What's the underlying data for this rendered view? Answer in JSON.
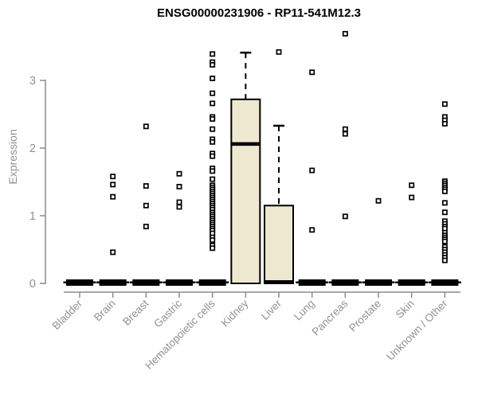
{
  "title": "ENSG00000231906 - RP11-541M12.3",
  "chart_data": {
    "type": "boxplot",
    "title": "ENSG00000231906 - RP11-541M12.3",
    "xlabel": "",
    "ylabel": "Expression",
    "ylim": [
      0,
      3.8
    ],
    "yticks": [
      "0",
      "1",
      "2",
      "3"
    ],
    "grid": false,
    "legend": "none",
    "colors": {
      "box_fill": "#EDE8CF",
      "box_stroke": "#000000",
      "median": "#000000",
      "whisker": "#000000",
      "outlier_stroke": "#000000",
      "outlier_fill": "#ffffff",
      "axis": "#8C8C8C",
      "tick_label": "#919191",
      "title": "#000000"
    },
    "categories": [
      "Bladder",
      "Brain",
      "Breast",
      "Gastric",
      "Hematopoietic cells",
      "Kidney",
      "Liver",
      "Lung",
      "Pancreas",
      "Prostate",
      "Skin",
      "Unknown / Other"
    ],
    "boxes": [
      {
        "category": "Bladder",
        "q1": 0,
        "median": 0,
        "q3": 0.02,
        "whisker_low": 0,
        "whisker_high": 0.02,
        "outliers": []
      },
      {
        "category": "Brain",
        "q1": 0,
        "median": 0,
        "q3": 0.02,
        "whisker_low": 0,
        "whisker_high": 0.02,
        "outliers": [
          1.58,
          1.46,
          1.28,
          0.46
        ]
      },
      {
        "category": "Breast",
        "q1": 0,
        "median": 0,
        "q3": 0.02,
        "whisker_low": 0,
        "whisker_high": 0.02,
        "outliers": [
          2.32,
          1.44,
          1.15,
          0.84
        ]
      },
      {
        "category": "Gastric",
        "q1": 0,
        "median": 0,
        "q3": 0.02,
        "whisker_low": 0,
        "whisker_high": 0.02,
        "outliers": [
          1.62,
          1.43,
          1.2,
          1.13
        ]
      },
      {
        "category": "Hematopoietic cells",
        "q1": 0,
        "median": 0,
        "q3": 0.02,
        "whisker_low": 0,
        "whisker_high": 0.02,
        "outliers": [
          3.39,
          3.27,
          3.23,
          3.03,
          2.81,
          2.66,
          2.46,
          2.43,
          2.28,
          2.13,
          2.09,
          1.92,
          1.88,
          1.7,
          1.66,
          1.54,
          1.45,
          1.42,
          1.39,
          1.36,
          1.33,
          1.3,
          1.27,
          1.24,
          1.21,
          1.18,
          1.15,
          1.12,
          1.09,
          1.05,
          1.02,
          0.99,
          0.96,
          0.93,
          0.9,
          0.87,
          0.84,
          0.81,
          0.78,
          0.74,
          0.68,
          0.64,
          0.56,
          0.52
        ]
      },
      {
        "category": "Kidney",
        "q1": 0,
        "median": 2.06,
        "q3": 2.72,
        "whisker_low": 0,
        "whisker_high": 3.41,
        "outliers": []
      },
      {
        "category": "Liver",
        "q1": 0,
        "median": 0.02,
        "q3": 1.15,
        "whisker_low": 0,
        "whisker_high": 2.33,
        "outliers": [
          3.42
        ]
      },
      {
        "category": "Lung",
        "q1": 0,
        "median": 0,
        "q3": 0.02,
        "whisker_low": 0,
        "whisker_high": 0.02,
        "outliers": [
          3.12,
          1.67,
          0.79
        ]
      },
      {
        "category": "Pancreas",
        "q1": 0,
        "median": 0,
        "q3": 0.02,
        "whisker_low": 0,
        "whisker_high": 0.02,
        "outliers": [
          3.69,
          2.28,
          2.21,
          0.99
        ]
      },
      {
        "category": "Prostate",
        "q1": 0,
        "median": 0,
        "q3": 0.02,
        "whisker_low": 0,
        "whisker_high": 0.02,
        "outliers": [
          1.22
        ]
      },
      {
        "category": "Skin",
        "q1": 0,
        "median": 0,
        "q3": 0.02,
        "whisker_low": 0,
        "whisker_high": 0.02,
        "outliers": [
          1.45,
          1.27
        ]
      },
      {
        "category": "Unknown / Other",
        "q1": 0,
        "median": 0,
        "q3": 0.02,
        "whisker_low": 0,
        "whisker_high": 0.02,
        "outliers": [
          2.65,
          2.46,
          2.41,
          2.36,
          1.51,
          1.48,
          1.45,
          1.42,
          1.39,
          1.36,
          1.19,
          1.05,
          0.92,
          0.88,
          0.84,
          0.81,
          0.75,
          0.71,
          0.68,
          0.65,
          0.62,
          0.54,
          0.5,
          0.46,
          0.42,
          0.38,
          0.34
        ]
      }
    ]
  }
}
